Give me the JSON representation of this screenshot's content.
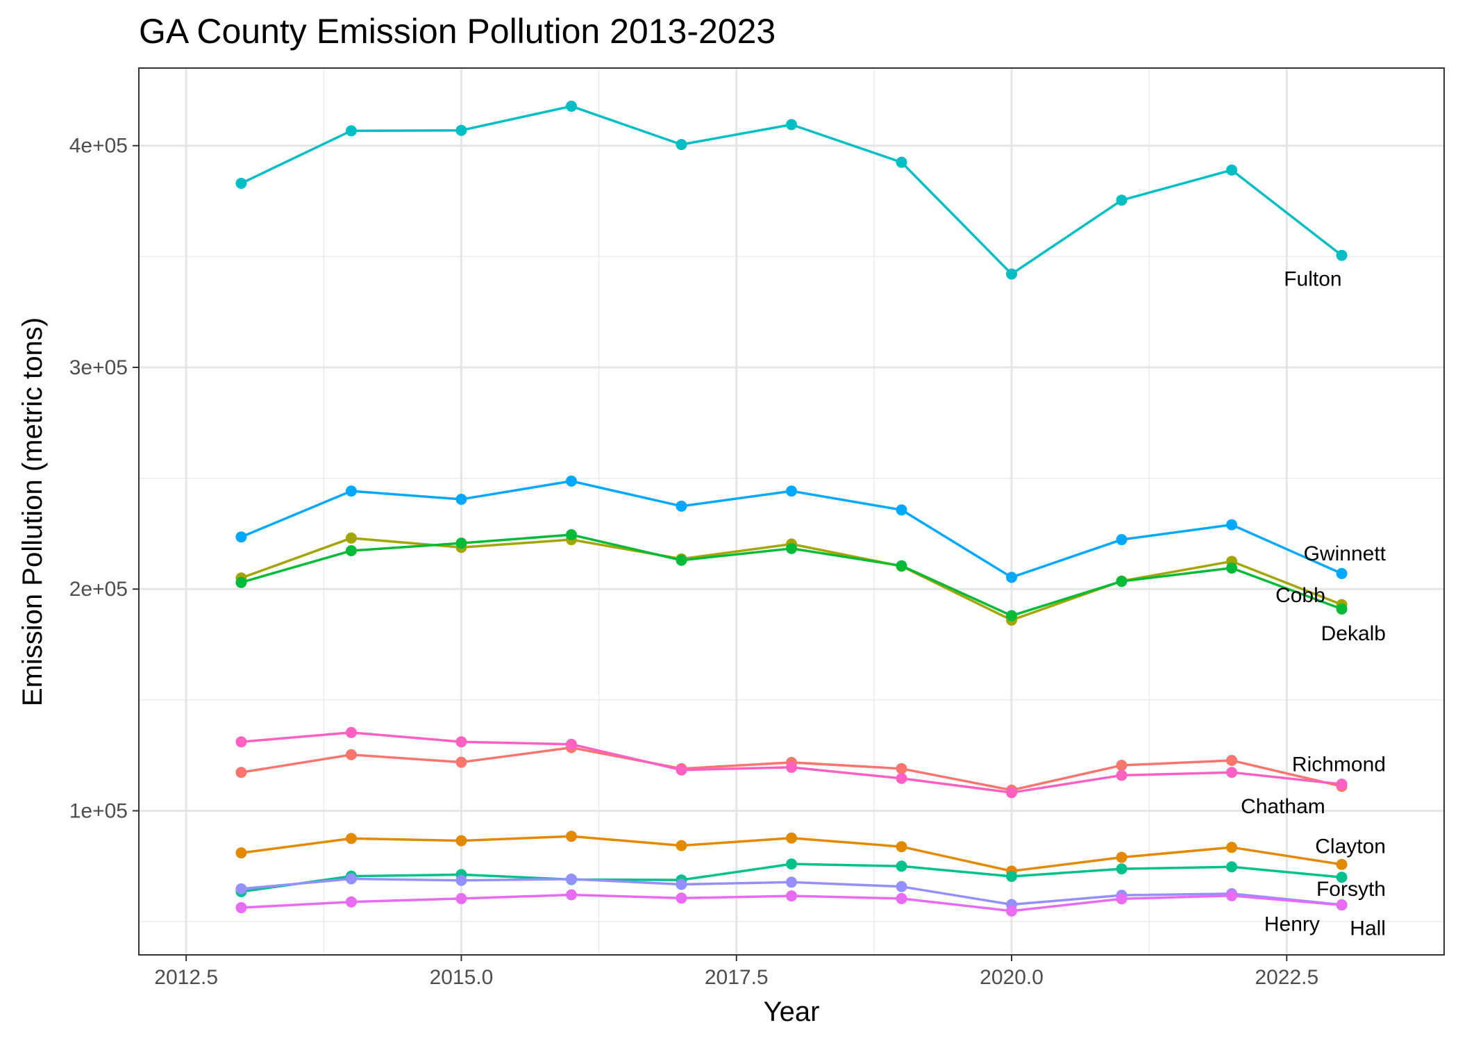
{
  "chart_data": {
    "type": "line",
    "title": "GA County Emission Pollution 2013-2023",
    "xlabel": "Year",
    "ylabel": "Emission Pollution (metric tons)",
    "xlim": [
      2012.07,
      2023.93
    ],
    "ylim": [
      35000,
      435000
    ],
    "x_ticks": [
      2012.5,
      2015.0,
      2017.5,
      2020.0,
      2022.5
    ],
    "x_tick_labels": [
      "2012.5",
      "2015.0",
      "2017.5",
      "2020.0",
      "2022.5"
    ],
    "y_ticks": [
      100000,
      200000,
      300000,
      400000
    ],
    "y_tick_labels": [
      "1e+05",
      "2e+05",
      "3e+05",
      "4e+05"
    ],
    "grid": true,
    "legend": "none",
    "x": [
      2013,
      2014,
      2015,
      2016,
      2017,
      2018,
      2019,
      2020,
      2021,
      2022,
      2023
    ],
    "series": [
      {
        "name": "Fulton",
        "color": "#00BFC4",
        "values": [
          383000,
          406700,
          406900,
          417800,
          400500,
          409500,
          392500,
          342100,
          375400,
          389000,
          350500
        ]
      },
      {
        "name": "Gwinnett",
        "color": "#00A9FF",
        "values": [
          223500,
          244200,
          240500,
          248700,
          237400,
          244200,
          235700,
          205300,
          222300,
          229000,
          207000
        ]
      },
      {
        "name": "Cobb",
        "color": "#A3A500",
        "values": [
          205000,
          223000,
          218800,
          222300,
          213600,
          220300,
          210300,
          186000,
          203600,
          212500,
          193000
        ]
      },
      {
        "name": "Dekalb",
        "color": "#00BA38",
        "values": [
          203000,
          217300,
          220700,
          224500,
          213000,
          218300,
          210500,
          188000,
          203500,
          209500,
          191000
        ]
      },
      {
        "name": "Richmond",
        "color": "#F8766D",
        "values": [
          117300,
          125300,
          121900,
          128500,
          119000,
          121800,
          119000,
          109300,
          120500,
          122700,
          111000
        ]
      },
      {
        "name": "Chatham",
        "color": "#FF61C3",
        "values": [
          131100,
          135300,
          131100,
          130000,
          118400,
          119600,
          114600,
          108200,
          116000,
          117300,
          112000
        ]
      },
      {
        "name": "Clayton",
        "color": "#E38900",
        "values": [
          81000,
          87500,
          86500,
          88500,
          84300,
          87700,
          83800,
          72800,
          79000,
          83500,
          75800
        ]
      },
      {
        "name": "Forsyth",
        "color": "#00C08B",
        "values": [
          63500,
          70500,
          71200,
          69000,
          68800,
          76000,
          75000,
          70400,
          73800,
          74700,
          70000
        ]
      },
      {
        "name": "Henry",
        "color": "#9590FF",
        "values": [
          64800,
          69300,
          68600,
          69200,
          66800,
          67800,
          65800,
          57700,
          61900,
          62600,
          57600
        ]
      },
      {
        "name": "Hall",
        "color": "#E76BF3",
        "values": [
          56300,
          58900,
          60400,
          62100,
          60600,
          61600,
          60400,
          54800,
          60300,
          61700,
          57500
        ]
      }
    ],
    "labels": [
      {
        "text": "Fulton",
        "x": 2023,
        "y": 340000,
        "anchor": "end"
      },
      {
        "text": "Gwinnett",
        "x": 2023.4,
        "y": 216000,
        "anchor": "end"
      },
      {
        "text": "Cobb",
        "x": 2022.85,
        "y": 197300,
        "anchor": "end"
      },
      {
        "text": "Dekalb",
        "x": 2023.4,
        "y": 180000,
        "anchor": "end"
      },
      {
        "text": "Richmond",
        "x": 2023.4,
        "y": 121000,
        "anchor": "end"
      },
      {
        "text": "Chatham",
        "x": 2022.85,
        "y": 102000,
        "anchor": "end"
      },
      {
        "text": "Clayton",
        "x": 2023.4,
        "y": 84000,
        "anchor": "end"
      },
      {
        "text": "Forsyth",
        "x": 2023.4,
        "y": 64800,
        "anchor": "end"
      },
      {
        "text": "Henry",
        "x": 2022.8,
        "y": 49000,
        "anchor": "end"
      },
      {
        "text": "Hall",
        "x": 2023.4,
        "y": 47000,
        "anchor": "end"
      }
    ]
  }
}
